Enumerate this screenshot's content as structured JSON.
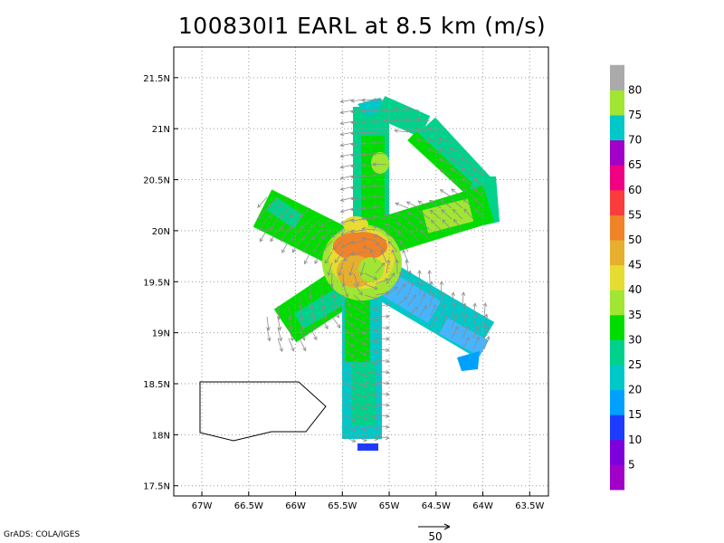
{
  "title": "100830I1 EARL at 8.5 km (m/s)",
  "credit": "GrADS: COLA/IGES",
  "map": {
    "lon_range": [
      -67.3,
      -63.3
    ],
    "lat_range": [
      17.4,
      21.8
    ],
    "lon_ticks": [
      "67W",
      "66.5W",
      "66W",
      "65.5W",
      "65W",
      "64.5W",
      "64W",
      "63.5W"
    ],
    "lat_ticks": [
      "17.5N",
      "18N",
      "18.5N",
      "19N",
      "19.5N",
      "20N",
      "20.5N",
      "21N",
      "21.5N"
    ],
    "grid": true
  },
  "colorbar": {
    "labels": [
      "5",
      "10",
      "15",
      "20",
      "25",
      "30",
      "35",
      "40",
      "45",
      "50",
      "55",
      "60",
      "65",
      "70",
      "75",
      "80"
    ],
    "colors": [
      "#a000c8",
      "#7d00dc",
      "#1e3cff",
      "#00a0ff",
      "#00c8c8",
      "#00d28c",
      "#00dc00",
      "#a0e632",
      "#e6dc32",
      "#e6af2d",
      "#f08228",
      "#fa3c3c",
      "#f00082",
      "#a000c8",
      "#00c8c8",
      "#a0e632",
      "#aaaaaa"
    ]
  },
  "vector_scale": {
    "label": "50"
  },
  "colors": {
    "frame": "#000000",
    "grid": "#999999",
    "arrow": "#8c8c8c"
  }
}
